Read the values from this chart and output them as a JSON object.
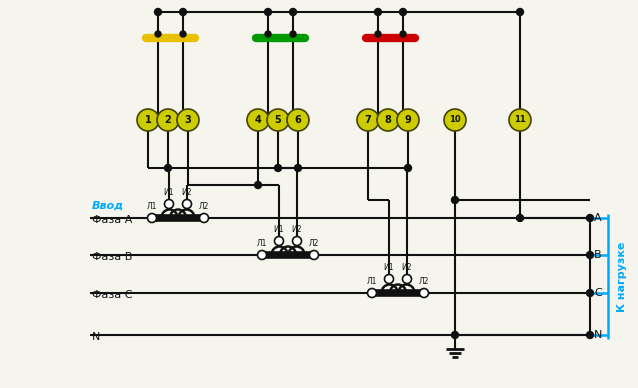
{
  "bg_color": "#f5f5ee",
  "line_color": "#111111",
  "busbar_yellow": "#e8c000",
  "busbar_green": "#009900",
  "busbar_red": "#cc0000",
  "terminal_fill": "#cccc00",
  "terminal_border": "#444400",
  "node_color": "#111111",
  "label_vvod": "Ввод",
  "label_phaseA": "Фаза A",
  "label_phaseB": "Фаза B",
  "label_phaseC": "Фаза C",
  "label_N_left": "N",
  "label_load": "К нагрузке",
  "label_A": "A",
  "label_B": "B",
  "label_C": "C",
  "label_N_right": "N",
  "cyan_color": "#00aaff"
}
